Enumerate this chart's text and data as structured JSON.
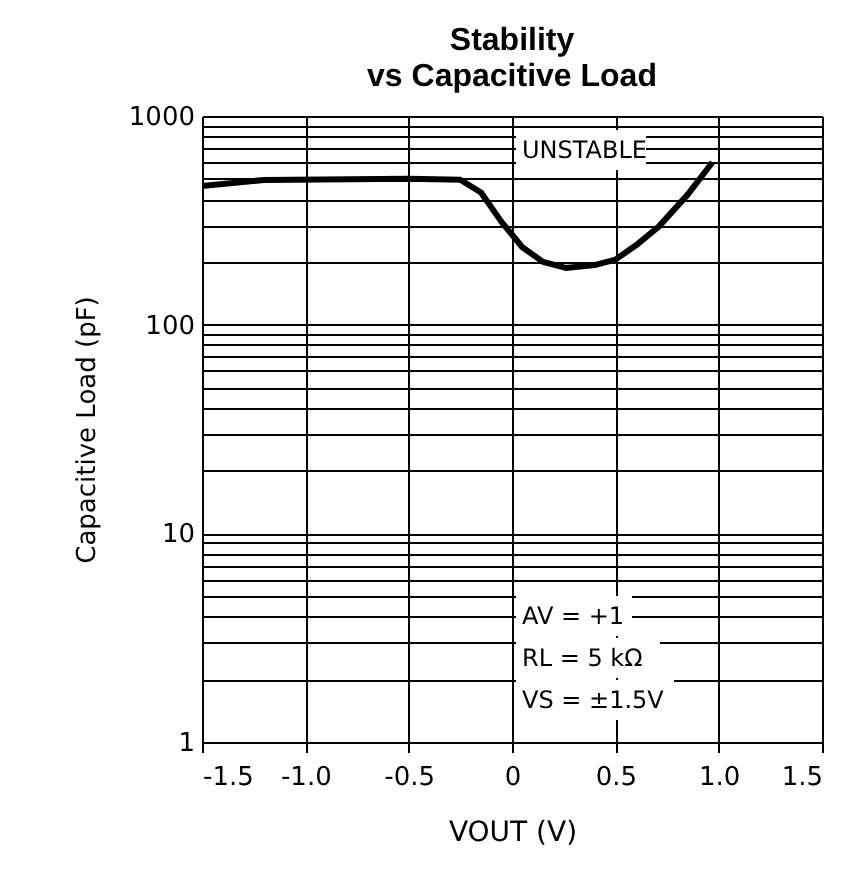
{
  "chart_data": {
    "type": "line",
    "title": [
      "Stability",
      "vs Capacitive Load"
    ],
    "xlabel": "VOUT (V)",
    "ylabel": "Capacitive Load (pF)",
    "x": [
      -1.5,
      -1.2,
      -0.5,
      -0.25,
      -0.15,
      -0.05,
      0.05,
      0.15,
      0.26,
      0.4,
      0.5,
      0.6,
      0.71,
      0.85,
      0.97
    ],
    "series": [
      {
        "color": "#000000",
        "values": [
          462,
          494,
          500,
          495,
          430,
          310,
          235,
          200,
          187,
          193,
          205,
          240,
          295,
          420,
          600
        ]
      }
    ],
    "xlim": [
      -1.5,
      1.5
    ],
    "xticks": [
      -1.5,
      {
        "value": -1,
        "label": "-1.0"
      },
      -0.5,
      0,
      0.5,
      {
        "value": 1,
        "label": "1.0"
      },
      1.5
    ],
    "ylim": [
      1,
      1000
    ],
    "log": true,
    "yticks": [
      1,
      {
        "value": 2,
        "label": null
      },
      {
        "value": 3,
        "label": null
      },
      {
        "value": 4,
        "label": null
      },
      {
        "value": 5,
        "label": null
      },
      {
        "value": 6,
        "label": null
      },
      {
        "value": 7,
        "label": null
      },
      {
        "value": 8,
        "label": null
      },
      {
        "value": 9,
        "label": null
      },
      10,
      {
        "value": 20,
        "label": null
      },
      {
        "value": 30,
        "label": null
      },
      {
        "value": 40,
        "label": null
      },
      {
        "value": 50,
        "label": null
      },
      {
        "value": 60,
        "label": null
      },
      {
        "value": 70,
        "label": null
      },
      {
        "value": 80,
        "label": null
      },
      {
        "value": 90,
        "label": null
      },
      100,
      {
        "value": 200,
        "label": null
      },
      {
        "value": 300,
        "label": null
      },
      {
        "value": 400,
        "label": null
      },
      {
        "value": 500,
        "label": null
      },
      {
        "value": 600,
        "label": null
      },
      {
        "value": 700,
        "label": null
      },
      {
        "value": 800,
        "label": null
      },
      {
        "value": 900,
        "label": null
      },
      1000
    ],
    "grid": true,
    "line_style": "solid",
    "marker": "none",
    "annotations": [
      "UNSTABLE",
      "AV = +1",
      "RL = 5 kΩ",
      "VS = ±1.5V"
    ]
  }
}
